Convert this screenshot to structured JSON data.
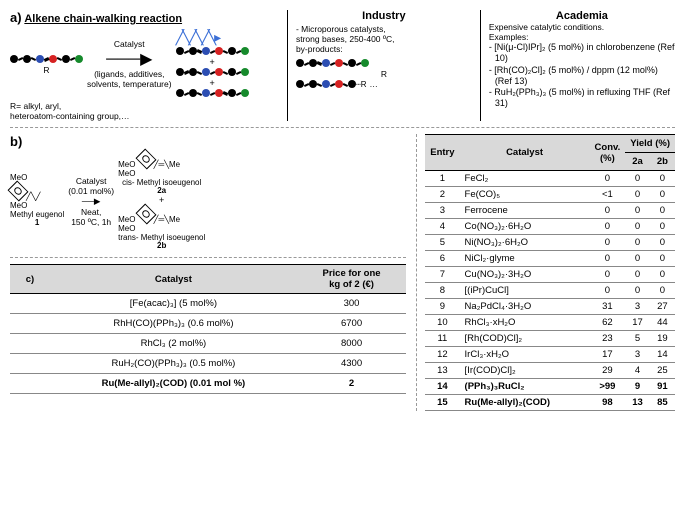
{
  "a": {
    "letter": "a)",
    "title": "Alkene chain-walking reaction",
    "catalyst": "Catalyst",
    "conditions": "(ligands, additives,\nsolvents, temperature)",
    "rnote": "R= alkyl, aryl,\nheteroatom-containing group,…",
    "rlabel": "R",
    "dots": "…",
    "colors": {
      "k": "#000",
      "b": "#2b4db2",
      "r": "#d62222",
      "g": "#168a2c"
    }
  },
  "industry": {
    "title": "Industry",
    "text": "- Microporous catalysts,\nstrong bases, 250-400 ºC,\nby-products:"
  },
  "academia": {
    "title": "Academia",
    "intro": "Expensive catalytic conditions.\nExamples:",
    "items": [
      "- [Ni(μ-Cl)IPr]₂ (5 mol%) in chlorobenzene (Ref 10)",
      "- [Rh(CO)₂Cl]₂ (5 mol%) / dppm (12 mol%) (Ref 13)",
      "- RuH₂(PPh₃)₃ (5 mol%) in refluxing THF (Ref 31)"
    ]
  },
  "b": {
    "letter": "b)",
    "sub": {
      "meo": "MeO",
      "me": "Me"
    },
    "catline": "Catalyst\n(0.01 mol%)",
    "cond": "Neat,\n150 ºC, 1h",
    "names": {
      "start": "Methyl eugenol",
      "startN": "1",
      "cis": "cis- Methyl isoeugenol",
      "cisN": "2a",
      "trans": "trans- Methyl isoeugenol",
      "transN": "2b"
    },
    "headers": {
      "entry": "Entry",
      "cat": "Catalyst",
      "conv": "Conv.\n(%)",
      "yield": "Yield (%)",
      "y2a": "2a",
      "y2b": "2b"
    },
    "rows": [
      {
        "e": "1",
        "c": "FeCl₂",
        "v": "0",
        "a": "0",
        "b": "0"
      },
      {
        "e": "2",
        "c": "Fe(CO)₅",
        "v": "<1",
        "a": "0",
        "b": "0"
      },
      {
        "e": "3",
        "c": "Ferrocene",
        "v": "0",
        "a": "0",
        "b": "0"
      },
      {
        "e": "4",
        "c": "Co(NO₃)₂·6H₂O",
        "v": "0",
        "a": "0",
        "b": "0"
      },
      {
        "e": "5",
        "c": "Ni(NO₃)₂·6H₂O",
        "v": "0",
        "a": "0",
        "b": "0"
      },
      {
        "e": "6",
        "c": "NiCl₂·glyme",
        "v": "0",
        "a": "0",
        "b": "0"
      },
      {
        "e": "7",
        "c": "Cu(NO₃)₂·3H₂O",
        "v": "0",
        "a": "0",
        "b": "0"
      },
      {
        "e": "8",
        "c": "[(iPr)CuCl]",
        "v": "0",
        "a": "0",
        "b": "0"
      },
      {
        "e": "9",
        "c": "Na₂PdCl₄·3H₂O",
        "v": "31",
        "a": "3",
        "b": "27"
      },
      {
        "e": "10",
        "c": "RhCl₃·xH₂O",
        "v": "62",
        "a": "17",
        "b": "44"
      },
      {
        "e": "11",
        "c": "[Rh(COD)Cl]₂",
        "v": "23",
        "a": "5",
        "b": "19"
      },
      {
        "e": "12",
        "c": "IrCl₃·xH₂O",
        "v": "17",
        "a": "3",
        "b": "14"
      },
      {
        "e": "13",
        "c": "[Ir(COD)Cl]₂",
        "v": "29",
        "a": "4",
        "b": "25"
      },
      {
        "e": "14",
        "c": "(PPh₃)₃RuCl₂",
        "v": ">99",
        "a": "9",
        "b": "91",
        "bold": true
      },
      {
        "e": "15",
        "c": "Ru(Me-allyl)₂(COD)",
        "v": "98",
        "a": "13",
        "b": "85",
        "bold": true
      }
    ]
  },
  "c": {
    "letter": "c)",
    "headers": {
      "cat": "Catalyst",
      "price": "Price for one\nkg of 2 (€)"
    },
    "rows": [
      {
        "c": "[Fe(acac)₃] (5 mol%)",
        "p": "300"
      },
      {
        "c": "RhH(CO)(PPh₃)₃ (0.6 mol%)",
        "p": "6700"
      },
      {
        "c": "RhCl₃ (2 mol%)",
        "p": "8000"
      },
      {
        "c": "RuH₂(CO)(PPh₃)₃ (0.5 mol%)",
        "p": "4300"
      },
      {
        "c": "Ru(Me-allyl)₂(COD) (0.01 mol %)",
        "p": "2",
        "bold": true
      }
    ]
  }
}
